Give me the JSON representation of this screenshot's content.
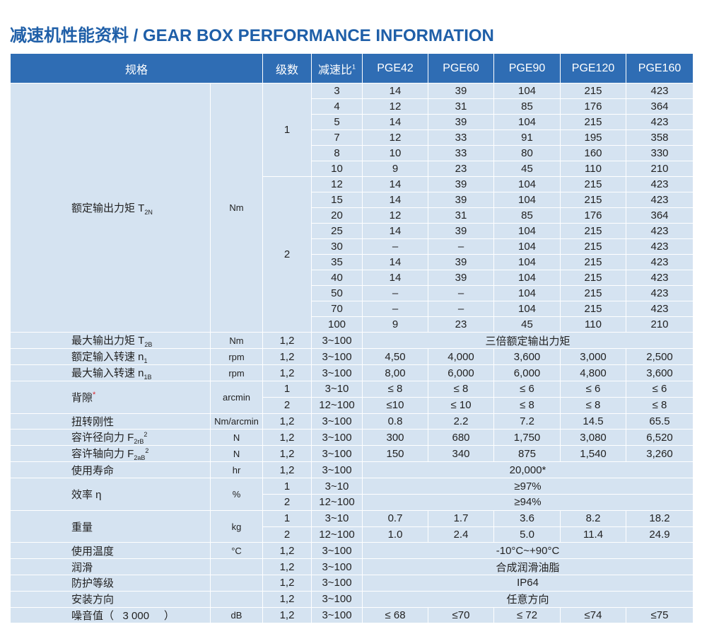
{
  "title": "减速机性能资料 / GEAR BOX PERFORMANCE INFORMATION",
  "header": {
    "spec": "规格",
    "stage": "级数",
    "ratio": "减速比",
    "ratio_sup": "1",
    "models": [
      "PGE42",
      "PGE60",
      "PGE90",
      "PGE120",
      "PGE160"
    ]
  },
  "torque": {
    "name": "额定输出力矩 T",
    "sub": "2N",
    "unit": "Nm",
    "stages": [
      {
        "stage": "1",
        "rows": [
          {
            "ratio": "3",
            "values": [
              "14",
              "39",
              "104",
              "215",
              "423"
            ]
          },
          {
            "ratio": "4",
            "values": [
              "12",
              "31",
              "85",
              "176",
              "364"
            ]
          },
          {
            "ratio": "5",
            "values": [
              "14",
              "39",
              "104",
              "215",
              "423"
            ]
          },
          {
            "ratio": "7",
            "values": [
              "12",
              "33",
              "91",
              "195",
              "358"
            ]
          },
          {
            "ratio": "8",
            "values": [
              "10",
              "33",
              "80",
              "160",
              "330"
            ]
          },
          {
            "ratio": "10",
            "values": [
              "9",
              "23",
              "45",
              "110",
              "210"
            ]
          }
        ]
      },
      {
        "stage": "2",
        "rows": [
          {
            "ratio": "12",
            "values": [
              "14",
              "39",
              "104",
              "215",
              "423"
            ]
          },
          {
            "ratio": "15",
            "values": [
              "14",
              "39",
              "104",
              "215",
              "423"
            ]
          },
          {
            "ratio": "20",
            "values": [
              "12",
              "31",
              "85",
              "176",
              "364"
            ]
          },
          {
            "ratio": "25",
            "values": [
              "14",
              "39",
              "104",
              "215",
              "423"
            ]
          },
          {
            "ratio": "30",
            "values": [
              "–",
              "–",
              "104",
              "215",
              "423"
            ]
          },
          {
            "ratio": "35",
            "values": [
              "14",
              "39",
              "104",
              "215",
              "423"
            ]
          },
          {
            "ratio": "40",
            "values": [
              "14",
              "39",
              "104",
              "215",
              "423"
            ]
          },
          {
            "ratio": "50",
            "values": [
              "–",
              "–",
              "104",
              "215",
              "423"
            ]
          },
          {
            "ratio": "70",
            "values": [
              "–",
              "–",
              "104",
              "215",
              "423"
            ]
          },
          {
            "ratio": "100",
            "values": [
              "9",
              "23",
              "45",
              "110",
              "210"
            ]
          }
        ]
      }
    ]
  },
  "specs": [
    {
      "name": "最大输出力矩 T",
      "sub": "2B",
      "unit": "Nm",
      "rows": [
        {
          "stage": "1,2",
          "ratio": "3~100",
          "merged": "三倍额定输出力矩"
        }
      ]
    },
    {
      "name": "额定输入转速 n",
      "sub": "1",
      "unit": "rpm",
      "rows": [
        {
          "stage": "1,2",
          "ratio": "3~100",
          "values": [
            "4,50",
            "4,000",
            "3,600",
            "3,000",
            "2,500"
          ]
        }
      ]
    },
    {
      "name": "最大输入转速 n",
      "sub": "1B",
      "unit": "rpm",
      "rows": [
        {
          "stage": "1,2",
          "ratio": "3~100",
          "values": [
            "8,00",
            "6,000",
            "6,000",
            "4,800",
            "3,600"
          ]
        }
      ]
    },
    {
      "name": "背隙",
      "mark": "*",
      "unit": "arcmin",
      "rows": [
        {
          "stage": "1",
          "ratio": "3~10",
          "values": [
            "≤ 8",
            "≤ 8",
            "≤ 6",
            "≤ 6",
            "≤ 6"
          ]
        },
        {
          "stage": "2",
          "ratio": "12~100",
          "values": [
            "≤10",
            "≤ 10",
            "≤ 8",
            "≤ 8",
            "≤ 8"
          ]
        }
      ]
    },
    {
      "name": "扭转刚性",
      "unit": "Nm/arcmin",
      "rows": [
        {
          "stage": "1,2",
          "ratio": "3~100",
          "values": [
            "0.8",
            "2.2",
            "7.2",
            "14.5",
            "65.5"
          ]
        }
      ]
    },
    {
      "name": "容许径向力 F",
      "sub": "2rB",
      "sup": "2",
      "unit": "N",
      "rows": [
        {
          "stage": "1,2",
          "ratio": "3~100",
          "values": [
            "300",
            "680",
            "1,750",
            "3,080",
            "6,520"
          ]
        }
      ]
    },
    {
      "name": "容许轴向力 F",
      "sub": "2aB",
      "sup": "2",
      "unit": "N",
      "rows": [
        {
          "stage": "1,2",
          "ratio": "3~100",
          "values": [
            "150",
            "340",
            "875",
            "1,540",
            "3,260"
          ]
        }
      ]
    },
    {
      "name": "使用寿命",
      "unit": "hr",
      "rows": [
        {
          "stage": "1,2",
          "ratio": "3~100",
          "merged": "20,000*"
        }
      ]
    },
    {
      "name": "效率 η",
      "unit": "%",
      "rows": [
        {
          "stage": "1",
          "ratio": "3~10",
          "merged": "≥97%"
        },
        {
          "stage": "2",
          "ratio": "12~100",
          "merged": "≥94%"
        }
      ]
    },
    {
      "name": "重量",
      "unit": "kg",
      "rows": [
        {
          "stage": "1",
          "ratio": "3~10",
          "values": [
            "0.7",
            "1.7",
            "3.6",
            "8.2",
            "18.2"
          ]
        },
        {
          "stage": "2",
          "ratio": "12~100",
          "values": [
            "1.0",
            "2.4",
            "5.0",
            "11.4",
            "24.9"
          ]
        }
      ]
    },
    {
      "name": "使用温度",
      "unit": "°C",
      "rows": [
        {
          "stage": "1,2",
          "ratio": "3~100",
          "merged": "-10°C~+90°C"
        }
      ]
    },
    {
      "name": "润滑",
      "rows": [
        {
          "stage": "1,2",
          "ratio": "3~100",
          "merged": "合成润滑油脂"
        }
      ]
    },
    {
      "name": "防护等级",
      "rows": [
        {
          "stage": "1,2",
          "ratio": "3~100",
          "merged": "IP64"
        }
      ]
    },
    {
      "name": "安装方向",
      "rows": [
        {
          "stage": "1,2",
          "ratio": "3~100",
          "merged": "任意方向"
        }
      ]
    },
    {
      "name": "噪音值（   3 000     ）",
      "unit": "dB",
      "rows": [
        {
          "stage": "1,2",
          "ratio": "3~100",
          "values": [
            "≤ 68",
            "≤70",
            "≤ 72",
            "≤74",
            "≤75"
          ]
        }
      ]
    }
  ]
}
